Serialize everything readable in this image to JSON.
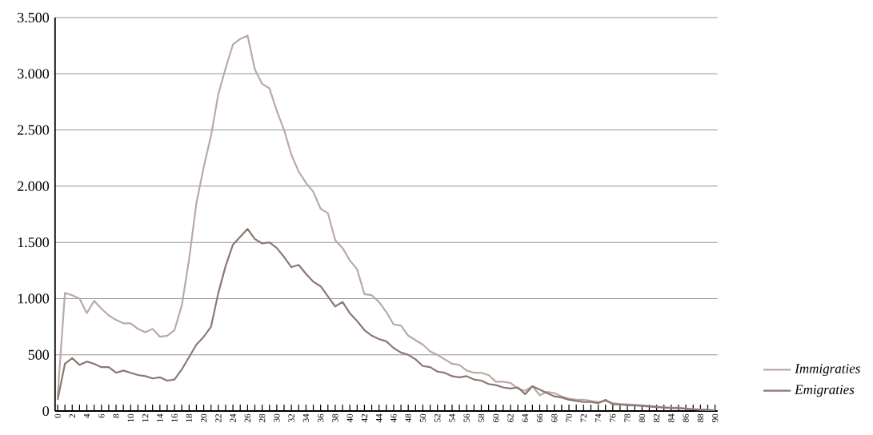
{
  "chart_data": {
    "type": "line",
    "categories": [
      "0",
      null,
      "2",
      null,
      "4",
      null,
      "6",
      null,
      "8",
      null,
      "10",
      null,
      "12",
      null,
      "14",
      null,
      "16",
      null,
      "18",
      null,
      "20",
      null,
      "22",
      null,
      "24",
      null,
      "26",
      null,
      "28",
      null,
      "30",
      null,
      "32",
      null,
      "34",
      null,
      "36",
      null,
      "38",
      null,
      "40",
      null,
      "42",
      null,
      "44",
      null,
      "46",
      null,
      "48",
      null,
      "50",
      null,
      "52",
      null,
      "54",
      null,
      "56",
      null,
      "58",
      null,
      "60",
      null,
      "62",
      null,
      "64",
      null,
      "66",
      null,
      "68",
      null,
      "70",
      null,
      "72",
      null,
      "74",
      null,
      "76",
      null,
      "78",
      null,
      "80",
      null,
      "82",
      null,
      "84",
      null,
      "86",
      null,
      "88",
      null,
      "90"
    ],
    "series": [
      {
        "name": "Immigraties",
        "color": "#b9aaa6",
        "values": [
          130,
          1050,
          1030,
          1000,
          870,
          980,
          910,
          850,
          810,
          780,
          780,
          730,
          700,
          730,
          660,
          670,
          720,
          940,
          1350,
          1850,
          2170,
          2450,
          2820,
          3050,
          3260,
          3310,
          3340,
          3040,
          2910,
          2870,
          2670,
          2500,
          2280,
          2130,
          2030,
          1950,
          1800,
          1760,
          1520,
          1450,
          1340,
          1260,
          1040,
          1030,
          970,
          880,
          770,
          760,
          670,
          630,
          590,
          530,
          500,
          460,
          420,
          410,
          360,
          340,
          340,
          320,
          260,
          260,
          250,
          200,
          180,
          220,
          140,
          170,
          160,
          130,
          110,
          100,
          100,
          90,
          80,
          90,
          70,
          60,
          60,
          55,
          50,
          45,
          40,
          35,
          30,
          30,
          20,
          15,
          15,
          10,
          5
        ]
      },
      {
        "name": "Emigraties",
        "color": "#8c7873",
        "values": [
          100,
          420,
          470,
          410,
          440,
          420,
          390,
          390,
          340,
          360,
          340,
          320,
          310,
          290,
          300,
          270,
          280,
          370,
          480,
          590,
          660,
          750,
          1050,
          1290,
          1480,
          1550,
          1620,
          1530,
          1490,
          1500,
          1450,
          1370,
          1280,
          1300,
          1220,
          1150,
          1110,
          1020,
          930,
          970,
          870,
          800,
          720,
          670,
          640,
          620,
          560,
          520,
          500,
          460,
          400,
          390,
          350,
          340,
          310,
          300,
          310,
          280,
          270,
          240,
          230,
          210,
          200,
          210,
          150,
          220,
          190,
          160,
          130,
          120,
          100,
          90,
          80,
          80,
          70,
          100,
          60,
          60,
          50,
          50,
          45,
          40,
          35,
          30,
          25,
          25,
          20,
          15,
          10,
          10,
          5
        ]
      }
    ],
    "ylim": [
      0,
      3500
    ],
    "yticks": [
      0,
      500,
      {
        "value": 1000,
        "label": "1.000"
      },
      {
        "value": 1500,
        "label": "1.500"
      },
      {
        "value": 2000,
        "label": "2.000"
      },
      {
        "value": 2500,
        "label": "2.500"
      },
      {
        "value": 3000,
        "label": "3.000"
      },
      {
        "value": 3500,
        "label": "3.500"
      }
    ],
    "grid": "y",
    "legend": "bottom right",
    "marker": "none",
    "line_style": "solid"
  }
}
